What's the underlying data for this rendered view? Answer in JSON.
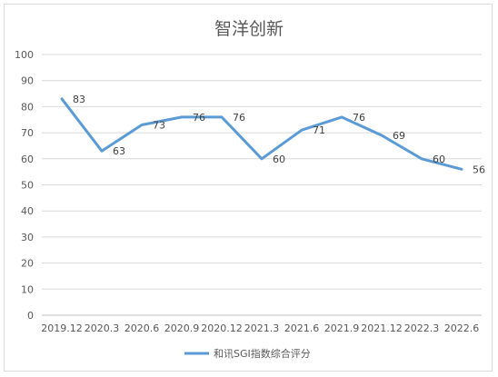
{
  "chart_data": {
    "type": "line",
    "title": "智洋创新",
    "categories": [
      "2019.12",
      "2020.3",
      "2020.6",
      "2020.9",
      "2020.12",
      "2021.3",
      "2021.6",
      "2021.9",
      "2021.12",
      "2022.3",
      "2022.6"
    ],
    "series": [
      {
        "name": "和讯SGI指数综合评分",
        "values": [
          83,
          63,
          73,
          76,
          76,
          60,
          71,
          76,
          69,
          60,
          56
        ]
      }
    ],
    "ylim": [
      0,
      100
    ],
    "yticks": [
      0,
      10,
      20,
      30,
      40,
      50,
      60,
      70,
      80,
      90,
      100
    ],
    "grid": true,
    "legend": "bottom",
    "line_color": "#5b9bd5"
  }
}
